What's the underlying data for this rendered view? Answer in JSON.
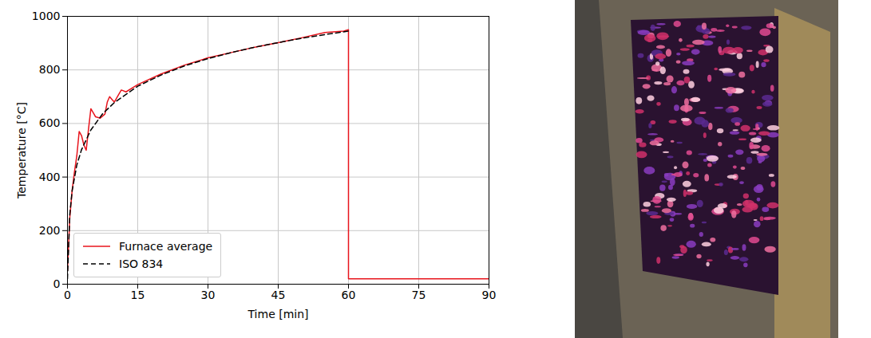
{
  "chart_data": {
    "type": "line",
    "x_label": "Time [min]",
    "y_label": "Temperature [°C]",
    "xlim": [
      0,
      90
    ],
    "xticks": [
      0,
      15,
      30,
      45,
      60,
      75,
      90
    ],
    "ylim": [
      0,
      1000
    ],
    "yticks": [
      0,
      200,
      400,
      600,
      800,
      1000
    ],
    "grid": true,
    "legend": "lower left",
    "series": [
      {
        "name": "Furnace average",
        "color": "#e8141c",
        "line_style": "solid",
        "x": [
          0,
          0.5,
          1,
          1.5,
          2,
          2.5,
          3,
          3.5,
          4,
          4.5,
          5,
          5.5,
          6,
          7,
          8,
          8.5,
          9,
          9.5,
          10,
          11,
          11.5,
          12.5,
          15,
          20,
          25,
          30,
          35,
          40,
          45,
          50,
          55,
          59,
          60,
          60,
          90
        ],
        "values": [
          50,
          250,
          350,
          420,
          480,
          570,
          555,
          520,
          500,
          580,
          655,
          640,
          625,
          620,
          635,
          680,
          700,
          690,
          680,
          710,
          725,
          718,
          745,
          785,
          818,
          845,
          865,
          885,
          902,
          920,
          940,
          945,
          950,
          20,
          20
        ]
      },
      {
        "name": "ISO 834",
        "color": "#000000",
        "line_style": "dashed",
        "x": [
          0,
          0.5,
          1,
          2,
          3,
          5,
          7.5,
          10,
          15,
          20,
          25,
          30,
          35,
          40,
          45,
          50,
          55,
          60
        ],
        "values": [
          20,
          261,
          349,
          445,
          502,
          576,
          636,
          678,
          739,
          781,
          815,
          842,
          865,
          885,
          902,
          918,
          932,
          945
        ]
      }
    ]
  }
}
